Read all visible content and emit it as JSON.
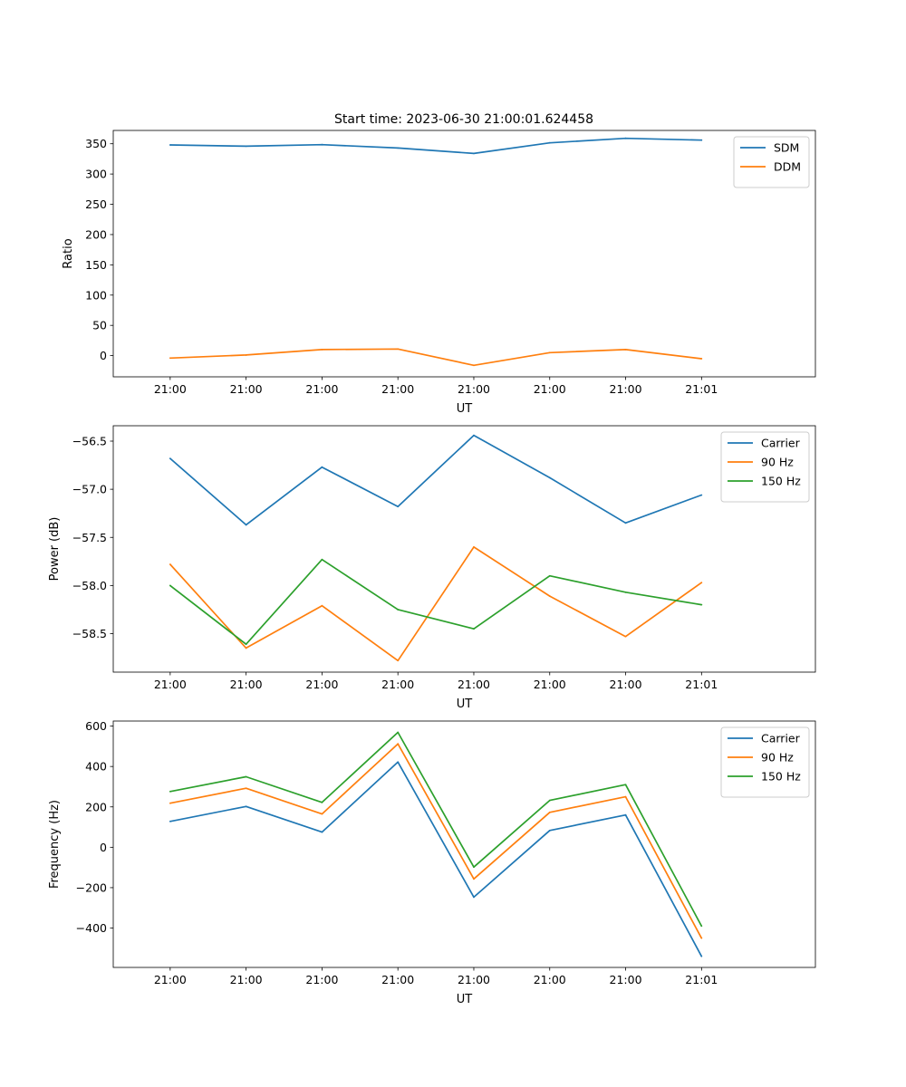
{
  "figure": {
    "title": "Start time: 2023-06-30 21:00:01.624458"
  },
  "chart_data": [
    {
      "type": "line",
      "ylabel": "Ratio",
      "xlabel": "UT",
      "xticks": [
        "21:00",
        "21:00",
        "21:00",
        "21:00",
        "21:00",
        "21:00",
        "21:00",
        "21:01"
      ],
      "x_index": [
        0,
        1,
        2,
        3,
        4,
        5,
        6,
        7
      ],
      "xlim": [
        -0.75,
        8.5
      ],
      "ylim": [
        -35,
        372
      ],
      "yticks": [
        0,
        50,
        100,
        150,
        200,
        250,
        300,
        350
      ],
      "legend": "top-right",
      "series": [
        {
          "name": "SDM",
          "color": "#1f77b4",
          "values": [
            348,
            346,
            348.5,
            343,
            334,
            351.5,
            359,
            356
          ]
        },
        {
          "name": "DDM",
          "color": "#ff7f0e",
          "values": [
            -4,
            1,
            10,
            11,
            -16,
            5,
            10,
            -5
          ]
        }
      ]
    },
    {
      "type": "line",
      "ylabel": "Power (dB)",
      "xlabel": "UT",
      "xticks": [
        "21:00",
        "21:00",
        "21:00",
        "21:00",
        "21:00",
        "21:00",
        "21:00",
        "21:01"
      ],
      "x_index": [
        0,
        1,
        2,
        3,
        4,
        5,
        6,
        7
      ],
      "xlim": [
        -0.75,
        8.5
      ],
      "ylim": [
        -58.9,
        -56.34
      ],
      "yticks": [
        -58.5,
        -58.0,
        -57.5,
        -57.0,
        -56.5
      ],
      "tick_labels": [
        "−58.5",
        "−58.0",
        "−57.5",
        "−57.0",
        "−56.5"
      ],
      "legend": "top-right",
      "series": [
        {
          "name": "Carrier",
          "color": "#1f77b4",
          "values": [
            -56.68,
            -57.37,
            -56.77,
            -57.18,
            -56.44,
            -56.88,
            -57.35,
            -57.06
          ]
        },
        {
          "name": "90 Hz",
          "color": "#ff7f0e",
          "values": [
            -57.78,
            -58.65,
            -58.21,
            -58.78,
            -57.6,
            -58.11,
            -58.53,
            -57.97
          ]
        },
        {
          "name": "150 Hz",
          "color": "#2ca02c",
          "values": [
            -58.0,
            -58.61,
            -57.73,
            -58.25,
            -58.45,
            -57.9,
            -58.07,
            -58.2
          ]
        }
      ]
    },
    {
      "type": "line",
      "ylabel": "Frequency (Hz)",
      "xlabel": "UT",
      "xticks": [
        "21:00",
        "21:00",
        "21:00",
        "21:00",
        "21:00",
        "21:00",
        "21:00",
        "21:01"
      ],
      "x_index": [
        0,
        1,
        2,
        3,
        4,
        5,
        6,
        7
      ],
      "xlim": [
        -0.75,
        8.5
      ],
      "ylim": [
        -595,
        625
      ],
      "yticks": [
        -400,
        -200,
        0,
        200,
        400,
        600
      ],
      "tick_labels": [
        "−400",
        "−200",
        "0",
        "200",
        "400",
        "600"
      ],
      "legend": "top-right",
      "series": [
        {
          "name": "Carrier",
          "color": "#1f77b4",
          "values": [
            128,
            202,
            75,
            422,
            -247,
            83,
            160,
            -540
          ]
        },
        {
          "name": "90 Hz",
          "color": "#ff7f0e",
          "values": [
            218,
            292,
            165,
            512,
            -157,
            173,
            250,
            -450
          ]
        },
        {
          "name": "150 Hz",
          "color": "#2ca02c",
          "values": [
            276,
            349,
            222,
            569,
            -98,
            232,
            310,
            -390
          ]
        }
      ]
    }
  ]
}
